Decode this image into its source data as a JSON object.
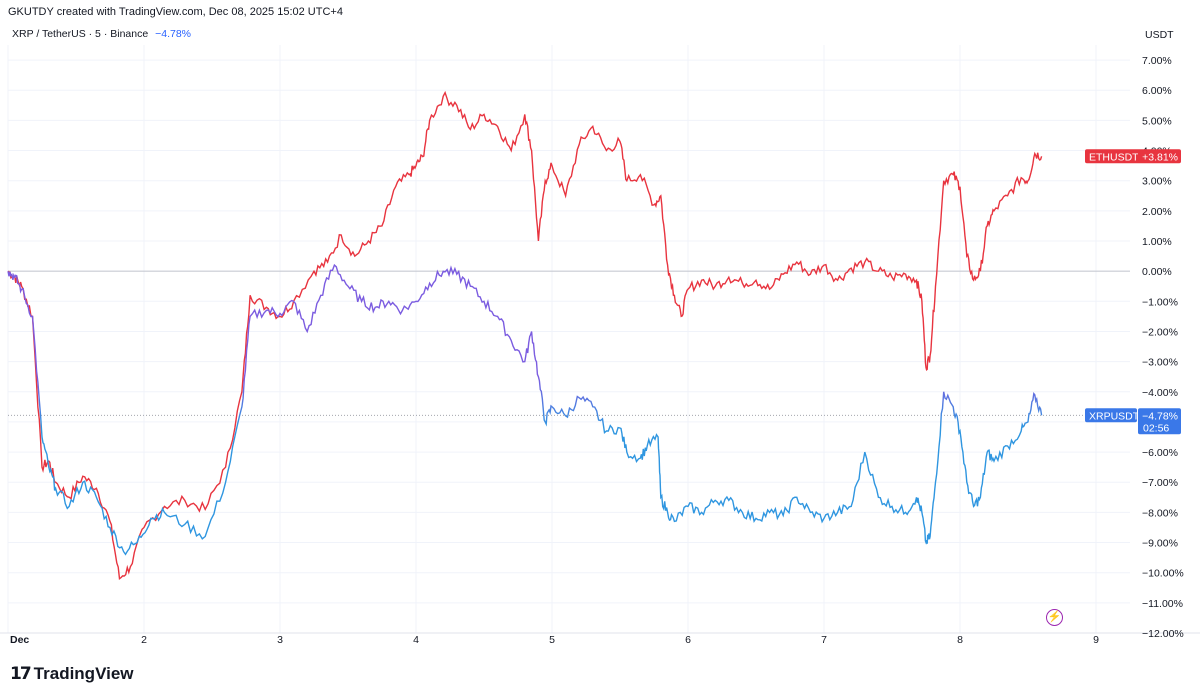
{
  "caption": "GKUTDY created with TradingView.com, Dec 08, 2025 15:02 UTC+4",
  "symbol_info": {
    "label": "XRP / TetherUS · 5 · Binance",
    "change": "−4.78%"
  },
  "brand": {
    "logo_mark": "17",
    "name": "TradingView"
  },
  "colors": {
    "eth": "#e8343f",
    "xrp_top": "#7b5ce0",
    "xrp_bottom": "#2f96e0",
    "xrp_tag": "#3a78e8",
    "grid": "#f0f3fa",
    "zero_line": "#b2b5be"
  },
  "chart_data": {
    "type": "line",
    "y_unit": "USDT",
    "ylim": [
      -12,
      7.5
    ],
    "y_ticks": [
      "7.00%",
      "6.00%",
      "5.00%",
      "4.00%",
      "3.00%",
      "2.00%",
      "1.00%",
      "0.00%",
      "−1.00%",
      "−2.00%",
      "−3.00%",
      "−4.00%",
      "−5.00%",
      "−6.00%",
      "−7.00%",
      "−8.00%",
      "−9.00%",
      "−10.00%",
      "−11.00%",
      "−12.00%"
    ],
    "x_ticks": [
      "Dec",
      "2",
      "3",
      "4",
      "5",
      "6",
      "7",
      "8",
      "9"
    ],
    "x_range": [
      1,
      9.25
    ],
    "series": [
      {
        "name": "ETHUSDT",
        "last_label": "+3.81%",
        "points": [
          [
            1.0,
            0.0
          ],
          [
            1.05,
            -0.2
          ],
          [
            1.1,
            -0.5
          ],
          [
            1.18,
            -1.5
          ],
          [
            1.25,
            -6.5
          ],
          [
            1.3,
            -6.3
          ],
          [
            1.35,
            -7.0
          ],
          [
            1.45,
            -7.5
          ],
          [
            1.55,
            -6.8
          ],
          [
            1.65,
            -7.2
          ],
          [
            1.75,
            -8.3
          ],
          [
            1.82,
            -10.2
          ],
          [
            1.9,
            -9.8
          ],
          [
            2.0,
            -8.5
          ],
          [
            2.15,
            -7.8
          ],
          [
            2.3,
            -7.6
          ],
          [
            2.45,
            -7.9
          ],
          [
            2.6,
            -6.5
          ],
          [
            2.72,
            -4.0
          ],
          [
            2.78,
            -0.8
          ],
          [
            2.9,
            -1.2
          ],
          [
            3.0,
            -1.5
          ],
          [
            3.1,
            -1.0
          ],
          [
            3.25,
            0.0
          ],
          [
            3.35,
            0.3
          ],
          [
            3.45,
            1.2
          ],
          [
            3.55,
            0.5
          ],
          [
            3.65,
            1.0
          ],
          [
            3.75,
            1.5
          ],
          [
            3.85,
            2.8
          ],
          [
            3.95,
            3.2
          ],
          [
            4.0,
            3.5
          ],
          [
            4.05,
            3.8
          ],
          [
            4.1,
            5.0
          ],
          [
            4.2,
            5.8
          ],
          [
            4.3,
            5.5
          ],
          [
            4.4,
            4.7
          ],
          [
            4.5,
            5.2
          ],
          [
            4.6,
            4.8
          ],
          [
            4.7,
            4.0
          ],
          [
            4.8,
            5.2
          ],
          [
            4.85,
            4.0
          ],
          [
            4.9,
            1.0
          ],
          [
            4.95,
            3.0
          ],
          [
            5.0,
            3.5
          ],
          [
            5.1,
            2.5
          ],
          [
            5.2,
            4.2
          ],
          [
            5.3,
            4.8
          ],
          [
            5.4,
            4.0
          ],
          [
            5.5,
            4.3
          ],
          [
            5.55,
            3.0
          ],
          [
            5.65,
            3.2
          ],
          [
            5.75,
            2.2
          ],
          [
            5.8,
            2.5
          ],
          [
            5.85,
            0.2
          ],
          [
            5.9,
            -0.8
          ],
          [
            5.95,
            -1.5
          ],
          [
            6.0,
            -0.6
          ],
          [
            6.1,
            -0.3
          ],
          [
            6.2,
            -0.5
          ],
          [
            6.3,
            -0.2
          ],
          [
            6.4,
            -0.4
          ],
          [
            6.5,
            -0.3
          ],
          [
            6.6,
            -0.6
          ],
          [
            6.7,
            -0.1
          ],
          [
            6.8,
            0.3
          ],
          [
            6.9,
            -0.1
          ],
          [
            7.0,
            0.2
          ],
          [
            7.1,
            -0.3
          ],
          [
            7.2,
            0.1
          ],
          [
            7.3,
            0.3
          ],
          [
            7.4,
            0.0
          ],
          [
            7.5,
            -0.2
          ],
          [
            7.6,
            -0.1
          ],
          [
            7.68,
            -0.3
          ],
          [
            7.72,
            -1.0
          ],
          [
            7.75,
            -3.2
          ],
          [
            7.78,
            -2.8
          ],
          [
            7.82,
            -0.5
          ],
          [
            7.88,
            3.0
          ],
          [
            7.95,
            3.2
          ],
          [
            8.0,
            2.8
          ],
          [
            8.05,
            0.5
          ],
          [
            8.1,
            -0.3
          ],
          [
            8.15,
            0.0
          ],
          [
            8.2,
            1.5
          ],
          [
            8.25,
            2.0
          ],
          [
            8.35,
            2.5
          ],
          [
            8.45,
            3.1
          ],
          [
            8.5,
            3.0
          ],
          [
            8.55,
            3.9
          ],
          [
            8.6,
            3.81
          ]
        ]
      },
      {
        "name": "XRPUSDT",
        "last_label": "−4.78%",
        "countdown": "02:56",
        "points": [
          [
            1.0,
            0.0
          ],
          [
            1.05,
            -0.2
          ],
          [
            1.1,
            -0.6
          ],
          [
            1.18,
            -1.5
          ],
          [
            1.25,
            -5.5
          ],
          [
            1.3,
            -6.5
          ],
          [
            1.35,
            -7.2
          ],
          [
            1.45,
            -7.8
          ],
          [
            1.55,
            -7.0
          ],
          [
            1.65,
            -7.5
          ],
          [
            1.75,
            -8.5
          ],
          [
            1.85,
            -9.3
          ],
          [
            1.95,
            -9.0
          ],
          [
            2.05,
            -8.2
          ],
          [
            2.15,
            -8.0
          ],
          [
            2.3,
            -8.4
          ],
          [
            2.45,
            -8.8
          ],
          [
            2.6,
            -7.0
          ],
          [
            2.72,
            -4.5
          ],
          [
            2.78,
            -1.5
          ],
          [
            2.9,
            -1.3
          ],
          [
            3.0,
            -1.4
          ],
          [
            3.1,
            -1.0
          ],
          [
            3.2,
            -2.0
          ],
          [
            3.3,
            -0.8
          ],
          [
            3.4,
            0.2
          ],
          [
            3.5,
            -0.5
          ],
          [
            3.6,
            -1.0
          ],
          [
            3.7,
            -1.2
          ],
          [
            3.8,
            -1.0
          ],
          [
            3.9,
            -1.3
          ],
          [
            4.0,
            -1.0
          ],
          [
            4.1,
            -0.4
          ],
          [
            4.2,
            0.0
          ],
          [
            4.3,
            -0.1
          ],
          [
            4.4,
            -0.5
          ],
          [
            4.5,
            -1.0
          ],
          [
            4.6,
            -1.5
          ],
          [
            4.7,
            -2.3
          ],
          [
            4.8,
            -3.0
          ],
          [
            4.85,
            -2.0
          ],
          [
            4.9,
            -3.5
          ],
          [
            4.95,
            -5.0
          ],
          [
            5.0,
            -4.5
          ],
          [
            5.1,
            -4.8
          ],
          [
            5.2,
            -4.2
          ],
          [
            5.3,
            -4.5
          ],
          [
            5.4,
            -5.3
          ],
          [
            5.5,
            -5.2
          ],
          [
            5.55,
            -6.0
          ],
          [
            5.65,
            -6.2
          ],
          [
            5.7,
            -5.8
          ],
          [
            5.78,
            -5.5
          ],
          [
            5.8,
            -7.5
          ],
          [
            5.85,
            -8.0
          ],
          [
            5.9,
            -8.3
          ],
          [
            6.0,
            -7.8
          ],
          [
            6.1,
            -8.0
          ],
          [
            6.2,
            -7.6
          ],
          [
            6.3,
            -7.6
          ],
          [
            6.4,
            -8.0
          ],
          [
            6.5,
            -8.2
          ],
          [
            6.6,
            -8.0
          ],
          [
            6.7,
            -8.1
          ],
          [
            6.8,
            -7.5
          ],
          [
            6.9,
            -8.0
          ],
          [
            7.0,
            -8.2
          ],
          [
            7.1,
            -8.0
          ],
          [
            7.2,
            -7.8
          ],
          [
            7.3,
            -6.0
          ],
          [
            7.4,
            -7.5
          ],
          [
            7.5,
            -7.8
          ],
          [
            7.6,
            -8.0
          ],
          [
            7.68,
            -7.5
          ],
          [
            7.72,
            -8.0
          ],
          [
            7.75,
            -9.0
          ],
          [
            7.78,
            -8.8
          ],
          [
            7.82,
            -7.0
          ],
          [
            7.88,
            -4.0
          ],
          [
            7.95,
            -4.5
          ],
          [
            8.0,
            -5.3
          ],
          [
            8.05,
            -7.0
          ],
          [
            8.1,
            -7.8
          ],
          [
            8.15,
            -7.5
          ],
          [
            8.2,
            -6.0
          ],
          [
            8.25,
            -6.3
          ],
          [
            8.35,
            -5.8
          ],
          [
            8.45,
            -5.3
          ],
          [
            8.5,
            -5.0
          ],
          [
            8.55,
            -4.1
          ],
          [
            8.6,
            -4.78
          ]
        ]
      }
    ]
  }
}
